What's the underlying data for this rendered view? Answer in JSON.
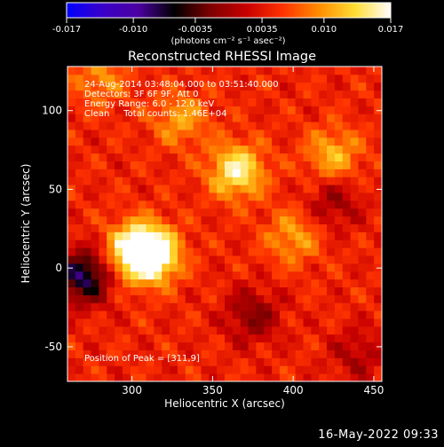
{
  "chart_data": {
    "type": "heatmap",
    "title": "Reconstructed RHESSI Image",
    "xlabel": "Heliocentric X (arcsec)",
    "ylabel": "Heliocentric Y (arcsec)",
    "xlim": [
      260,
      455
    ],
    "ylim": [
      -72,
      128
    ],
    "x_ticks": [
      "300",
      "350",
      "400",
      "450"
    ],
    "x_tick_values": [
      300,
      350,
      400,
      450
    ],
    "y_ticks": [
      "100",
      "50",
      "0",
      "-50"
    ],
    "y_tick_values": [
      100,
      50,
      0,
      -50
    ],
    "colorbar": {
      "range": [
        -0.017,
        0.017
      ],
      "tick_labels": [
        "-0.017",
        "-0.010",
        "-0.0035",
        "0.0035",
        "0.010",
        "0.017"
      ],
      "tick_values": [
        -0.017,
        -0.01,
        -0.0035,
        0.0035,
        0.01,
        0.017
      ],
      "units": "(photons cm⁻² s⁻¹ asec⁻²)"
    },
    "annotations": [
      "24-Aug-2014 03:48:04.000 to 03:51:40.000",
      "Detectors: 3F 6F 9F, Att 0",
      "Energy Range: 6.0 - 12.0 keV",
      "Clean     Total counts: 1.46E+04"
    ],
    "peak_label": "Position of Peak = [311,9]",
    "peak": {
      "x": 311,
      "y": 9,
      "value": 0.017
    },
    "sources": [
      {
        "x": 311,
        "y": 9,
        "value": 0.017
      },
      {
        "x": 365,
        "y": 62,
        "value": 0.011
      },
      {
        "x": 300,
        "y": 12,
        "value": 0.008
      },
      {
        "x": 425,
        "y": 72,
        "value": 0.007
      },
      {
        "x": 400,
        "y": 20,
        "value": 0.006
      },
      {
        "x": 330,
        "y": 95,
        "value": 0.006
      },
      {
        "x": 280,
        "y": 120,
        "value": 0.005
      },
      {
        "x": 270,
        "y": -5,
        "value": -0.012
      },
      {
        "x": 375,
        "y": -30,
        "value": -0.006
      },
      {
        "x": 425,
        "y": 42,
        "value": -0.005
      },
      {
        "x": 440,
        "y": -55,
        "value": -0.004
      }
    ],
    "background_level": 0.0045,
    "colors": {
      "colormap": [
        "#0000ff",
        "#3a00c8",
        "#4b00a0",
        "#000000",
        "#7f0000",
        "#c80000",
        "#ff3200",
        "#ff8c00",
        "#ffdc32",
        "#ffffff"
      ]
    }
  },
  "footer": {
    "date": "16-May-2022 09:33"
  }
}
